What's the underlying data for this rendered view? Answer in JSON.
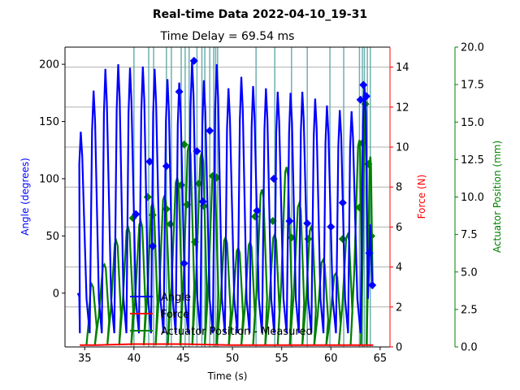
{
  "chart_data": {
    "type": "line",
    "title": "Real-time Data 2022-04-10_19-31",
    "subtitle": "Time Delay = 69.54 ms",
    "xlabel": "Time (s)",
    "ylabel_left": "Angle (degrees)",
    "ylabel_right1": "Force (N)",
    "ylabel_right2": "Actuator Position (mm)",
    "xlim": [
      33,
      66
    ],
    "ylim_angle": [
      -47,
      215
    ],
    "ylim_force": [
      0,
      15
    ],
    "ylim_position": [
      0,
      20
    ],
    "xticks": [
      35,
      40,
      45,
      50,
      55,
      60,
      65
    ],
    "yticks_angle": [
      0,
      50,
      100,
      150,
      200
    ],
    "yticks_force": [
      0,
      2,
      4,
      6,
      8,
      10,
      12,
      14
    ],
    "yticks_position": [
      0.0,
      2.5,
      5.0,
      7.5,
      10.0,
      12.5,
      15.0,
      17.5,
      20.0
    ],
    "grid": true,
    "legend_position": "lower-center",
    "colors": {
      "angle": "#0000ff",
      "force": "#ff0000",
      "position": "#008000",
      "markers": "#5fa8a8"
    },
    "legend": [
      {
        "label": "Angle",
        "color": "#0000ff"
      },
      {
        "label": "Force",
        "color": "#ff0000"
      },
      {
        "label": "Actuator Position - Measured",
        "color": "#008000"
      }
    ],
    "vertical_markers_x": [
      40.0,
      41.5,
      42.0,
      43.3,
      43.8,
      44.8,
      45.2,
      45.6,
      46.4,
      46.9,
      47.2,
      47.7,
      48.1,
      48.3,
      48.5,
      52.4,
      54.3,
      56.0,
      57.6,
      59.9,
      61.3,
      62.9,
      63.2,
      63.4,
      63.7,
      64.0
    ],
    "angle_series": {
      "name": "Angle",
      "peaks": [
        {
          "x": 34.6,
          "y": 141
        },
        {
          "x": 35.9,
          "y": 177
        },
        {
          "x": 37.1,
          "y": 196
        },
        {
          "x": 38.4,
          "y": 200
        },
        {
          "x": 39.6,
          "y": 197
        },
        {
          "x": 40.9,
          "y": 198
        },
        {
          "x": 42.1,
          "y": 196
        },
        {
          "x": 43.4,
          "y": 187
        },
        {
          "x": 44.6,
          "y": 184
        },
        {
          "x": 45.9,
          "y": 203
        },
        {
          "x": 47.1,
          "y": 186
        },
        {
          "x": 48.4,
          "y": 200
        },
        {
          "x": 49.6,
          "y": 179
        },
        {
          "x": 50.9,
          "y": 189
        },
        {
          "x": 52.1,
          "y": 181
        },
        {
          "x": 53.4,
          "y": 179
        },
        {
          "x": 54.6,
          "y": 176
        },
        {
          "x": 55.9,
          "y": 175
        },
        {
          "x": 57.1,
          "y": 176
        },
        {
          "x": 58.4,
          "y": 170
        },
        {
          "x": 59.6,
          "y": 164
        },
        {
          "x": 60.9,
          "y": 160
        },
        {
          "x": 62.1,
          "y": 159
        },
        {
          "x": 63.4,
          "y": 183
        },
        {
          "x": 64.2,
          "y": 7
        }
      ],
      "markers": [
        {
          "x": 40.2,
          "y": 69
        },
        {
          "x": 41.6,
          "y": 115
        },
        {
          "x": 41.9,
          "y": 41
        },
        {
          "x": 43.3,
          "y": 111
        },
        {
          "x": 44.6,
          "y": 176
        },
        {
          "x": 45.1,
          "y": 26
        },
        {
          "x": 46.1,
          "y": 203
        },
        {
          "x": 46.4,
          "y": 124
        },
        {
          "x": 47.0,
          "y": 80
        },
        {
          "x": 47.7,
          "y": 142
        },
        {
          "x": 52.5,
          "y": 72
        },
        {
          "x": 54.2,
          "y": 100
        },
        {
          "x": 55.8,
          "y": 63
        },
        {
          "x": 57.6,
          "y": 61
        },
        {
          "x": 60.0,
          "y": 58
        },
        {
          "x": 61.2,
          "y": 79
        },
        {
          "x": 63.0,
          "y": 169
        },
        {
          "x": 63.3,
          "y": 182
        },
        {
          "x": 63.6,
          "y": 172
        },
        {
          "x": 63.9,
          "y": 35
        },
        {
          "x": 64.2,
          "y": 7
        }
      ]
    },
    "position_series": {
      "name": "Actuator Position - Measured",
      "peaks": [
        {
          "x": 35.7,
          "y": 4.2
        },
        {
          "x": 37.0,
          "y": 5.5
        },
        {
          "x": 38.2,
          "y": 7.1
        },
        {
          "x": 39.4,
          "y": 8.0
        },
        {
          "x": 40.7,
          "y": 8.4
        },
        {
          "x": 41.9,
          "y": 9.6
        },
        {
          "x": 43.1,
          "y": 10.1
        },
        {
          "x": 44.4,
          "y": 11.3
        },
        {
          "x": 45.6,
          "y": 13.5
        },
        {
          "x": 46.9,
          "y": 13.0
        },
        {
          "x": 48.1,
          "y": 11.6
        },
        {
          "x": 49.3,
          "y": 7.3
        },
        {
          "x": 50.6,
          "y": 6.6
        },
        {
          "x": 51.8,
          "y": 7.0
        },
        {
          "x": 53.0,
          "y": 10.5
        },
        {
          "x": 54.3,
          "y": 7.5
        },
        {
          "x": 55.5,
          "y": 12.0
        },
        {
          "x": 56.8,
          "y": 9.6
        },
        {
          "x": 58.0,
          "y": 8.0
        },
        {
          "x": 59.2,
          "y": 5.8
        },
        {
          "x": 60.5,
          "y": 4.9
        },
        {
          "x": 61.7,
          "y": 7.5
        },
        {
          "x": 62.9,
          "y": 13.8
        },
        {
          "x": 63.5,
          "y": 16.5
        },
        {
          "x": 64.0,
          "y": 12.7
        }
      ],
      "markers": [
        {
          "x": 39.9,
          "y": 8.6
        },
        {
          "x": 41.4,
          "y": 10.0
        },
        {
          "x": 41.9,
          "y": 8.8
        },
        {
          "x": 43.3,
          "y": 9.2
        },
        {
          "x": 43.7,
          "y": 8.2
        },
        {
          "x": 44.8,
          "y": 10.8
        },
        {
          "x": 45.1,
          "y": 13.5
        },
        {
          "x": 45.4,
          "y": 9.5
        },
        {
          "x": 46.2,
          "y": 7.0
        },
        {
          "x": 46.6,
          "y": 10.9
        },
        {
          "x": 47.1,
          "y": 9.4
        },
        {
          "x": 48.0,
          "y": 11.4
        },
        {
          "x": 48.4,
          "y": 11.3
        },
        {
          "x": 52.3,
          "y": 8.7
        },
        {
          "x": 54.1,
          "y": 8.4
        },
        {
          "x": 56.0,
          "y": 7.3
        },
        {
          "x": 57.7,
          "y": 7.2
        },
        {
          "x": 61.2,
          "y": 7.2
        },
        {
          "x": 62.9,
          "y": 9.3
        },
        {
          "x": 63.2,
          "y": 13.6
        },
        {
          "x": 63.5,
          "y": 16.2
        },
        {
          "x": 63.8,
          "y": 12.2
        },
        {
          "x": 64.1,
          "y": 7.4
        }
      ]
    },
    "force_series": {
      "name": "Force",
      "values": [
        {
          "x": 34.5,
          "y": 0.05
        },
        {
          "x": 36.0,
          "y": 0.05
        },
        {
          "x": 40.0,
          "y": 0.1
        },
        {
          "x": 45.0,
          "y": 0.1
        },
        {
          "x": 50.0,
          "y": 0.05
        },
        {
          "x": 60.0,
          "y": 0.05
        },
        {
          "x": 64.3,
          "y": 0.05
        }
      ]
    }
  }
}
